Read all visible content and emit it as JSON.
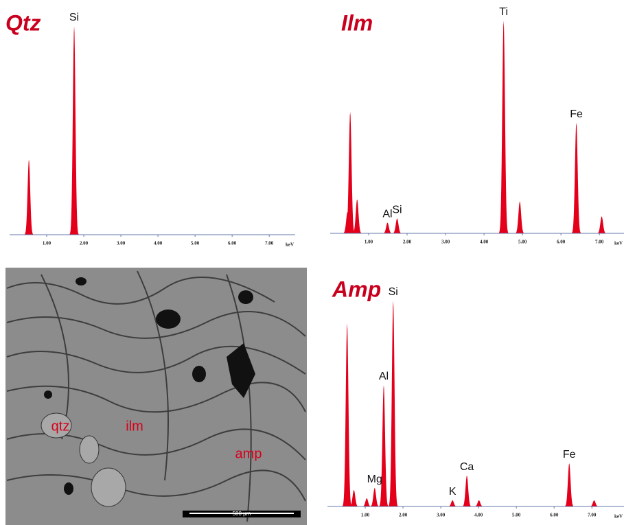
{
  "chart_data": [
    {
      "type": "spectrum",
      "title": "Qtz",
      "x_label": "keV",
      "color": "#e4001b",
      "x": [
        0.52,
        1.74
      ],
      "values": [
        36,
        100
      ],
      "xlim": [
        0,
        7.7
      ],
      "ylim": [
        0,
        100
      ],
      "xticks": [
        {
          "value": 1,
          "label": "1.00"
        },
        {
          "value": 2,
          "label": "2.00"
        },
        {
          "value": 3,
          "label": "3.00"
        },
        {
          "value": 4,
          "label": "4.00"
        },
        {
          "value": 5,
          "label": "5.00"
        },
        {
          "value": 6,
          "label": "6.00"
        },
        {
          "value": 7,
          "label": "7.00"
        }
      ],
      "annotations": [
        {
          "text": "Si",
          "x": 1.74
        }
      ]
    },
    {
      "type": "spectrum",
      "title": "Ilm",
      "x_label": "keV",
      "color": "#e4001b",
      "x": [
        0.45,
        0.52,
        0.7,
        1.49,
        1.74,
        4.51,
        4.93,
        6.4,
        7.06
      ],
      "values": [
        10,
        57,
        16,
        5,
        7,
        100,
        15,
        52,
        8
      ],
      "xlim": [
        0,
        7.64
      ],
      "ylim": [
        0,
        100
      ],
      "xticks": [
        {
          "value": 1,
          "label": "1.00"
        },
        {
          "value": 2,
          "label": "2.00"
        },
        {
          "value": 3,
          "label": "3.00"
        },
        {
          "value": 4,
          "label": "4.00"
        },
        {
          "value": 5,
          "label": "5.00"
        },
        {
          "value": 6,
          "label": "6.00"
        },
        {
          "value": 7,
          "label": "7.00"
        }
      ],
      "annotations": [
        {
          "text": "Al",
          "x": 1.49
        },
        {
          "text": "Si",
          "x": 1.74
        },
        {
          "text": "Ti",
          "x": 4.51
        },
        {
          "text": "Fe",
          "x": 6.4
        }
      ]
    },
    {
      "type": "spectrum",
      "title": "Amp",
      "x_label": "keV",
      "color": "#e4001b",
      "x": [
        0.52,
        0.7,
        1.04,
        1.25,
        1.49,
        1.74,
        3.31,
        3.69,
        4.01,
        6.4,
        7.06
      ],
      "values": [
        89,
        8,
        4,
        9,
        59,
        100,
        3,
        15,
        3,
        21,
        3
      ],
      "xlim": [
        0,
        7.85
      ],
      "ylim": [
        0,
        100
      ],
      "xticks": [
        {
          "value": 1,
          "label": "1.00"
        },
        {
          "value": 2,
          "label": "2.00"
        },
        {
          "value": 3,
          "label": "3.00"
        },
        {
          "value": 4,
          "label": "4.00"
        },
        {
          "value": 5,
          "label": "5.00"
        },
        {
          "value": 6,
          "label": "6.00"
        },
        {
          "value": 7,
          "label": "7.00"
        }
      ],
      "annotations": [
        {
          "text": "Mg",
          "x": 1.25
        },
        {
          "text": "Al",
          "x": 1.49
        },
        {
          "text": "Si",
          "x": 1.74
        },
        {
          "text": "K",
          "x": 3.31
        },
        {
          "text": "Ca",
          "x": 3.69
        },
        {
          "text": "Fe",
          "x": 6.4
        }
      ]
    }
  ],
  "image": {
    "labels": [
      "qtz",
      "ilm",
      "amp"
    ],
    "scale_bar": "500 µm"
  }
}
